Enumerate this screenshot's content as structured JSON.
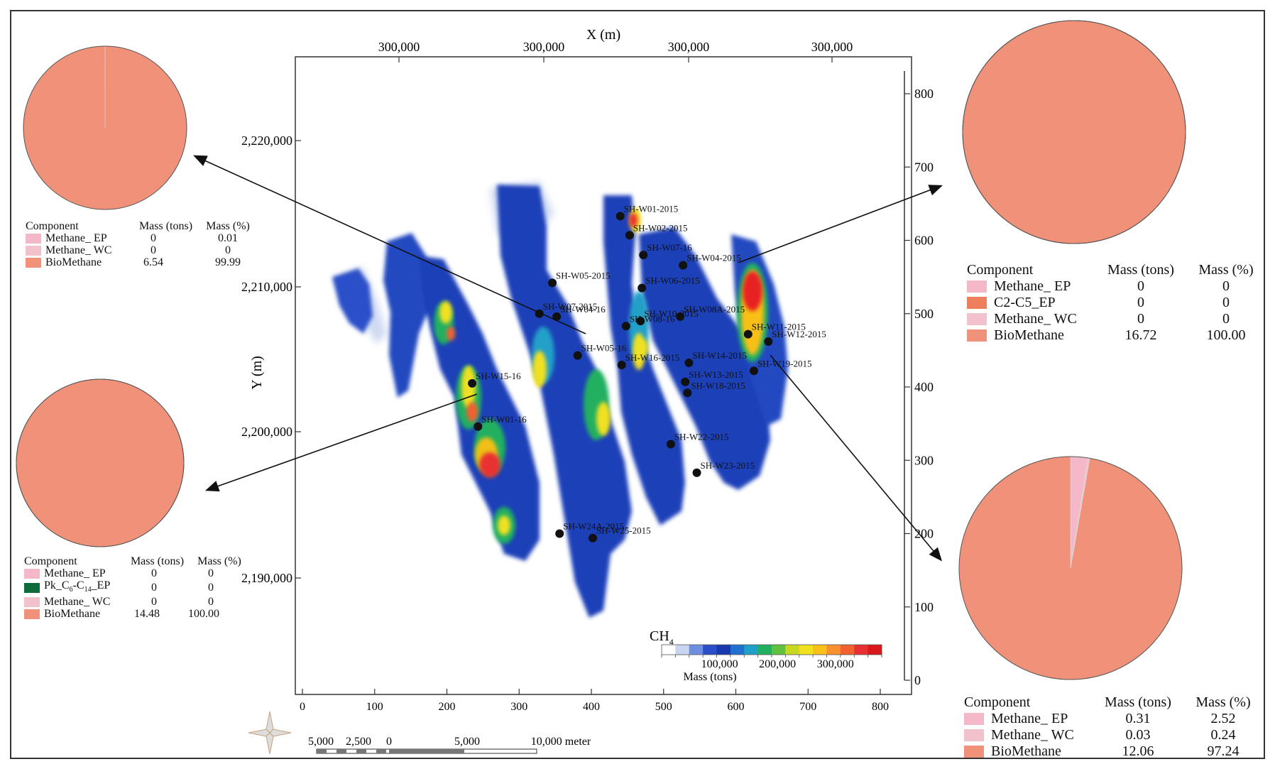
{
  "map": {
    "x_axis_title": "X (m)",
    "y_axis_title": "Y (m)",
    "top_ticks": [
      "300,000",
      "300,000",
      "300,000",
      "300,000"
    ],
    "left_ticks": [
      "2,220,000",
      "2,210,000",
      "2,200,000",
      "2,190,000"
    ],
    "bottom_ticks": [
      "0",
      "100",
      "200",
      "300",
      "400",
      "500",
      "600",
      "700",
      "800"
    ],
    "right_ticks": [
      "800",
      "700",
      "600",
      "500",
      "400",
      "300",
      "200",
      "100",
      "0"
    ],
    "colorbar": {
      "title": "CH",
      "title_sub": "4",
      "tick_labels": [
        "100,000",
        "200,000",
        "300,000"
      ],
      "unit_label": "Mass (tons)",
      "colors": [
        "#ffffff",
        "#c8d4f0",
        "#6e8ee0",
        "#2a4fc8",
        "#1838b0",
        "#2070d0",
        "#20a0c8",
        "#20b060",
        "#60c040",
        "#c8d820",
        "#f0e020",
        "#f8c018",
        "#f89030",
        "#f06030",
        "#e83030",
        "#d81818"
      ]
    },
    "scale_bar": {
      "labels": [
        "5,000",
        "2,500",
        "0",
        "5,000",
        "10,000 meter"
      ]
    },
    "wells": [
      {
        "name": "SH-W01-2015",
        "x": 440,
        "y": 633
      },
      {
        "name": "SH-W02-2015",
        "x": 453,
        "y": 607
      },
      {
        "name": "SH-W07-16",
        "x": 472,
        "y": 580
      },
      {
        "name": "SH-W04-2015",
        "x": 527,
        "y": 566
      },
      {
        "name": "SH-W05-2015",
        "x": 346,
        "y": 542
      },
      {
        "name": "SH-W06-2015",
        "x": 470,
        "y": 535
      },
      {
        "name": "SH-W07-2015",
        "x": 328,
        "y": 500
      },
      {
        "name": "SH-W04-16",
        "x": 352,
        "y": 496
      },
      {
        "name": "SH-W08A-2015",
        "x": 523,
        "y": 496
      },
      {
        "name": "SH-W10-2015",
        "x": 468,
        "y": 490
      },
      {
        "name": "SH-W08-16",
        "x": 448,
        "y": 483
      },
      {
        "name": "SH-W11-2015",
        "x": 617,
        "y": 472
      },
      {
        "name": "SH-W12-2015",
        "x": 645,
        "y": 462
      },
      {
        "name": "SH-W05-16",
        "x": 381,
        "y": 443
      },
      {
        "name": "SH-W16-2015",
        "x": 442,
        "y": 430
      },
      {
        "name": "SH-W14-2015",
        "x": 535,
        "y": 433
      },
      {
        "name": "SH-W19-2015",
        "x": 625,
        "y": 422
      },
      {
        "name": "SH-W15-16",
        "x": 235,
        "y": 405
      },
      {
        "name": "SH-W13-2015",
        "x": 530,
        "y": 407
      },
      {
        "name": "SH-W18-2015",
        "x": 533,
        "y": 392
      },
      {
        "name": "SH-W01-16",
        "x": 243,
        "y": 346
      },
      {
        "name": "SH-W22-2015",
        "x": 510,
        "y": 322
      },
      {
        "name": "SH-W23-2015",
        "x": 546,
        "y": 283
      },
      {
        "name": "SH-W24A-2015",
        "x": 356,
        "y": 200
      },
      {
        "name": "SH-W25-2015",
        "x": 402,
        "y": 194
      }
    ]
  },
  "chart_data": [
    {
      "type": "heatmap",
      "xlabel": "X (m)",
      "ylabel": "Y (m)",
      "xlim": [
        0,
        800
      ],
      "ylim": [
        0,
        800
      ],
      "colorbar_label": "Mass (tons)",
      "colorbar_ticks": [
        100000,
        200000,
        300000
      ],
      "points": [
        {
          "label": "SH-W01-2015",
          "x": 440,
          "y": 633
        },
        {
          "label": "SH-W02-2015",
          "x": 453,
          "y": 607
        },
        {
          "label": "SH-W07-16",
          "x": 472,
          "y": 580
        },
        {
          "label": "SH-W04-2015",
          "x": 527,
          "y": 566
        },
        {
          "label": "SH-W05-2015",
          "x": 346,
          "y": 542
        },
        {
          "label": "SH-W06-2015",
          "x": 470,
          "y": 535
        },
        {
          "label": "SH-W07-2015",
          "x": 328,
          "y": 500
        },
        {
          "label": "SH-W04-16",
          "x": 352,
          "y": 496
        },
        {
          "label": "SH-W08A-2015",
          "x": 523,
          "y": 496
        },
        {
          "label": "SH-W10-2015",
          "x": 468,
          "y": 490
        },
        {
          "label": "SH-W08-16",
          "x": 448,
          "y": 483
        },
        {
          "label": "SH-W11-2015",
          "x": 617,
          "y": 472
        },
        {
          "label": "SH-W12-2015",
          "x": 645,
          "y": 462
        },
        {
          "label": "SH-W05-16",
          "x": 381,
          "y": 443
        },
        {
          "label": "SH-W16-2015",
          "x": 442,
          "y": 430
        },
        {
          "label": "SH-W14-2015",
          "x": 535,
          "y": 433
        },
        {
          "label": "SH-W19-2015",
          "x": 625,
          "y": 422
        },
        {
          "label": "SH-W15-16",
          "x": 235,
          "y": 405
        },
        {
          "label": "SH-W13-2015",
          "x": 530,
          "y": 407
        },
        {
          "label": "SH-W18-2015",
          "x": 533,
          "y": 392
        },
        {
          "label": "SH-W01-16",
          "x": 243,
          "y": 346
        },
        {
          "label": "SH-W22-2015",
          "x": 510,
          "y": 322
        },
        {
          "label": "SH-W23-2015",
          "x": 546,
          "y": 283
        },
        {
          "label": "SH-W24A-2015",
          "x": 356,
          "y": 200
        },
        {
          "label": "SH-W25-2015",
          "x": 402,
          "y": 194
        }
      ]
    },
    {
      "type": "pie",
      "position": "top-left",
      "headers": [
        "Component",
        "Mass (tons)",
        "Mass (%)"
      ],
      "slices": [
        {
          "label": "Methane_ EP",
          "mass": "0",
          "percent": "0.01",
          "value": 0.01,
          "color": "#f4b8c8"
        },
        {
          "label": "Methane_ WC",
          "mass": "0",
          "percent": "0",
          "value": 0,
          "color": "#f2c2cc"
        },
        {
          "label": "BioMethane",
          "mass": "6.54",
          "percent": "99.99",
          "value": 99.99,
          "color": "#f0917a"
        }
      ]
    },
    {
      "type": "pie",
      "position": "bottom-left",
      "headers": [
        "Component",
        "Mass (tons)",
        "Mass (%)"
      ],
      "slices": [
        {
          "label": "Methane_ EP",
          "mass": "0",
          "percent": "0",
          "value": 0,
          "color": "#f4b8c8"
        },
        {
          "label": "Pk_C6-C14_EP",
          "label_main": "Pk_C",
          "sub1": "6",
          "mid": "-C",
          "sub2": "14",
          "label_end": "_EP",
          "mass": "0",
          "percent": "0",
          "value": 0,
          "color": "#0e6b3a"
        },
        {
          "label": "Methane_ WC",
          "mass": "0",
          "percent": "0",
          "value": 0,
          "color": "#f2c2cc"
        },
        {
          "label": "BioMethane",
          "mass": "14.48",
          "percent": "100.00",
          "value": 100,
          "color": "#f0917a"
        }
      ]
    },
    {
      "type": "pie",
      "position": "top-right",
      "headers": [
        "Component",
        "Mass (tons)",
        "Mass (%)"
      ],
      "slices": [
        {
          "label": "Methane_ EP",
          "mass": "0",
          "percent": "0",
          "value": 0,
          "color": "#f4b8c8"
        },
        {
          "label": "C2-C5_EP",
          "mass": "0",
          "percent": "0",
          "value": 0,
          "color": "#ee7f5c"
        },
        {
          "label": "Methane_ WC",
          "mass": "0",
          "percent": "0",
          "value": 0,
          "color": "#f2c2cc"
        },
        {
          "label": "BioMethane",
          "mass": "16.72",
          "percent": "100.00",
          "value": 100,
          "color": "#f0917a"
        }
      ]
    },
    {
      "type": "pie",
      "position": "bottom-right",
      "headers": [
        "Component",
        "Mass (tons)",
        "Mass (%)"
      ],
      "slices": [
        {
          "label": "Methane_ EP",
          "mass": "0.31",
          "percent": "2.52",
          "value": 2.52,
          "color": "#f4b8c8"
        },
        {
          "label": "Methane_ WC",
          "mass": "0.03",
          "percent": "0.24",
          "value": 0.24,
          "color": "#f2c2cc"
        },
        {
          "label": "BioMethane",
          "mass": "12.06",
          "percent": "97.24",
          "value": 97.24,
          "color": "#f0917a"
        }
      ]
    }
  ]
}
